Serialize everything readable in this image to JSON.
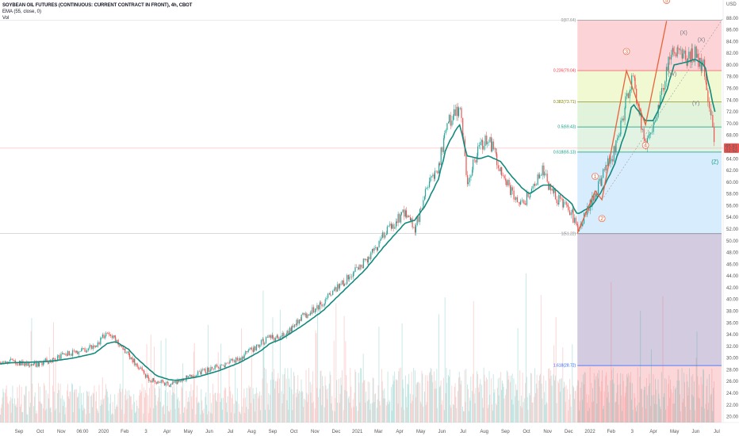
{
  "legend": {
    "title": "SOYBEAN OIL FUTURES (CONTINUOUS: CURRENT CONTRACT IN FRONT), 4h, CBOT",
    "ema": "EMA (55, close, 0)",
    "vol": "Vol"
  },
  "price_axis": {
    "currency": "USD",
    "ticks": [
      "88.00",
      "86.00",
      "84.00",
      "82.00",
      "80.00",
      "78.00",
      "76.00",
      "74.00",
      "72.00",
      "70.00",
      "68.00",
      "66.00",
      "64.00",
      "62.00",
      "60.00",
      "58.00",
      "56.00",
      "54.00",
      "52.00",
      "50.00",
      "48.00",
      "46.00",
      "44.00",
      "42.00",
      "40.00",
      "38.00",
      "36.00",
      "34.00",
      "32.00",
      "30.00",
      "28.00",
      "26.00",
      "24.00",
      "22.00",
      "20.00"
    ],
    "last_price": "65.81",
    "countdown": "02:52"
  },
  "time_axis": {
    "labels": [
      "Sep",
      "Oct",
      "Nov",
      "06:00",
      "2020",
      "Feb",
      "3",
      "Apr",
      "May",
      "Jun",
      "Jul",
      "Aug",
      "Sep",
      "Oct",
      "Nov",
      "Dec",
      "2021",
      "Mar",
      "Apr",
      "May",
      "Jun",
      "Jul",
      "Aug",
      "Sep",
      "Oct",
      "Nov",
      "Dec",
      "2022",
      "Feb",
      "3",
      "Apr",
      "May",
      "Jun",
      "Jul"
    ]
  },
  "fib_levels": [
    {
      "label": "0(87.64)",
      "price": 87.64,
      "color": "#888888"
    },
    {
      "label": "0.236(79.04)",
      "price": 79.04,
      "color": "#f23645"
    },
    {
      "label": "0.382(73.71)",
      "price": 73.71,
      "color": "#808000"
    },
    {
      "label": "0.5(69.43)",
      "price": 69.43,
      "color": "#089981"
    },
    {
      "label": "0.618(65.13)",
      "price": 65.13,
      "color": "#089981"
    },
    {
      "label": "1(51.22)",
      "price": 51.22,
      "color": "#787b86"
    },
    {
      "label": "1.618(28.72)",
      "price": 28.72,
      "color": "#2962ff"
    }
  ],
  "wave_labels": [
    "1",
    "2",
    "3",
    "4",
    "5",
    "(X)",
    "(X)",
    "(W)",
    "(Y)",
    "(Z)"
  ],
  "colors": {
    "up": "#26a69a",
    "down": "#ef5350",
    "ema": "#138a7e",
    "impulse": "#e8623a"
  },
  "chart_data": {
    "type": "line",
    "title": "SOYBEAN OIL FUTURES (CONTINUOUS: CURRENT CONTRACT IN FRONT), 4h, CBOT",
    "xlabel": "",
    "ylabel": "USD",
    "ylim": [
      19,
      90
    ],
    "x": [
      "2019-08-15",
      "2019-09-01",
      "2019-10-01",
      "2019-11-01",
      "2019-12-01",
      "2020-01-01",
      "2020-01-20",
      "2020-02-01",
      "2020-02-20",
      "2020-03-01",
      "2020-03-20",
      "2020-04-01",
      "2020-04-20",
      "2020-05-01",
      "2020-06-01",
      "2020-07-01",
      "2020-08-01",
      "2020-09-01",
      "2020-09-15",
      "2020-10-01",
      "2020-11-01",
      "2020-12-01",
      "2021-01-01",
      "2021-02-01",
      "2021-03-01",
      "2021-04-01",
      "2021-04-15",
      "2021-05-01",
      "2021-05-20",
      "2021-06-01",
      "2021-06-20",
      "2021-07-01",
      "2021-07-20",
      "2021-08-01",
      "2021-08-20",
      "2021-09-01",
      "2021-09-20",
      "2021-10-01",
      "2021-10-20",
      "2021-11-01",
      "2021-11-20",
      "2021-12-01",
      "2021-12-10",
      "2022-01-01",
      "2022-01-15",
      "2022-02-01",
      "2022-02-20",
      "2022-03-01",
      "2022-03-20",
      "2022-04-01",
      "2022-04-20",
      "2022-05-01",
      "2022-05-20",
      "2022-06-01",
      "2022-06-15",
      "2022-06-30"
    ],
    "series": [
      {
        "values": [
          29.2,
          29.5,
          28.8,
          29.8,
          31.0,
          32.0,
          34.5,
          33.0,
          30.5,
          29.0,
          26.5,
          26.0,
          25.5,
          26.0,
          27.5,
          28.5,
          30.0,
          32.5,
          33.5,
          33.5,
          37.0,
          39.5,
          43.0,
          46.5,
          51.0,
          55.0,
          52.0,
          58.0,
          63.0,
          70.0,
          73.0,
          60.0,
          66.0,
          67.5,
          62.0,
          59.0,
          56.0,
          58.5,
          62.0,
          58.5,
          56.0,
          55.0,
          51.5,
          57.0,
          61.0,
          65.0,
          74.0,
          78.0,
          66.0,
          70.0,
          79.0,
          83.0,
          81.0,
          82.0,
          79.0,
          65.8
        ]
      },
      {
        "values": [
          29.0,
          29.2,
          29.3,
          29.5,
          30.0,
          30.8,
          32.5,
          32.8,
          31.5,
          30.2,
          28.2,
          27.0,
          26.3,
          26.2,
          26.8,
          27.8,
          29.2,
          31.2,
          32.5,
          33.2,
          35.5,
          38.0,
          41.5,
          45.0,
          49.0,
          53.0,
          53.5,
          56.0,
          60.5,
          66.0,
          70.0,
          64.5,
          64.0,
          64.5,
          63.5,
          61.5,
          59.0,
          58.0,
          59.5,
          59.5,
          57.5,
          56.5,
          54.5,
          56.0,
          58.5,
          62.5,
          69.0,
          73.5,
          70.5,
          70.5,
          75.5,
          80.0,
          80.5,
          81.0,
          80.0,
          72.0
        ]
      }
    ]
  }
}
